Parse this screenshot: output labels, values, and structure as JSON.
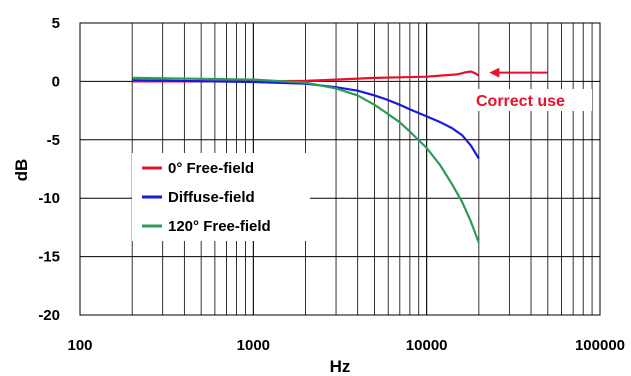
{
  "chart_data": {
    "type": "line",
    "xscale": "log",
    "xlim": [
      100,
      100000
    ],
    "ylim": [
      -20,
      5
    ],
    "xlabel": "Hz",
    "ylabel": "dB",
    "xticks": [
      100,
      1000,
      10000,
      100000
    ],
    "xtick_labels": [
      "100",
      "1000",
      "10000",
      "100000"
    ],
    "yticks": [
      5,
      0,
      -5,
      -10,
      -15,
      -20
    ],
    "ytick_labels": [
      "5",
      "0",
      "-5",
      "-10",
      "-15",
      "-20"
    ],
    "grid": true,
    "legend_position": "bottom-left",
    "series": [
      {
        "name": "0° Free-field",
        "color": "#e8102a",
        "x": [
          200,
          1000,
          2000,
          3000,
          5000,
          7000,
          10000,
          12000,
          15000,
          17000,
          18000,
          19000,
          20000
        ],
        "y": [
          0.0,
          0.0,
          0.05,
          0.15,
          0.3,
          0.35,
          0.4,
          0.5,
          0.6,
          0.8,
          0.85,
          0.7,
          0.5
        ]
      },
      {
        "name": "Diffuse-field",
        "color": "#1a1adf",
        "x": [
          200,
          1000,
          2000,
          3000,
          4000,
          5000,
          6000,
          7000,
          8000,
          10000,
          12000,
          14000,
          16000,
          18000,
          20000
        ],
        "y": [
          0.1,
          -0.05,
          -0.2,
          -0.5,
          -0.8,
          -1.2,
          -1.6,
          -2.0,
          -2.4,
          -3.0,
          -3.5,
          -4.0,
          -4.6,
          -5.5,
          -6.6
        ]
      },
      {
        "name": "120° Free-field",
        "color": "#2e9a5a",
        "x": [
          200,
          1000,
          2000,
          3000,
          4000,
          5000,
          6000,
          7000,
          8000,
          10000,
          12000,
          14000,
          16000,
          18000,
          20000
        ],
        "y": [
          0.3,
          0.15,
          -0.1,
          -0.6,
          -1.2,
          -2.0,
          -2.8,
          -3.5,
          -4.3,
          -5.7,
          -7.2,
          -8.8,
          -10.3,
          -12.0,
          -13.8
        ]
      }
    ],
    "annotations": [
      {
        "text": "Correct use",
        "color": "#e8102a",
        "arrow_from": [
          50000,
          0.75
        ],
        "arrow_to": [
          23000,
          0.75
        ]
      }
    ]
  }
}
